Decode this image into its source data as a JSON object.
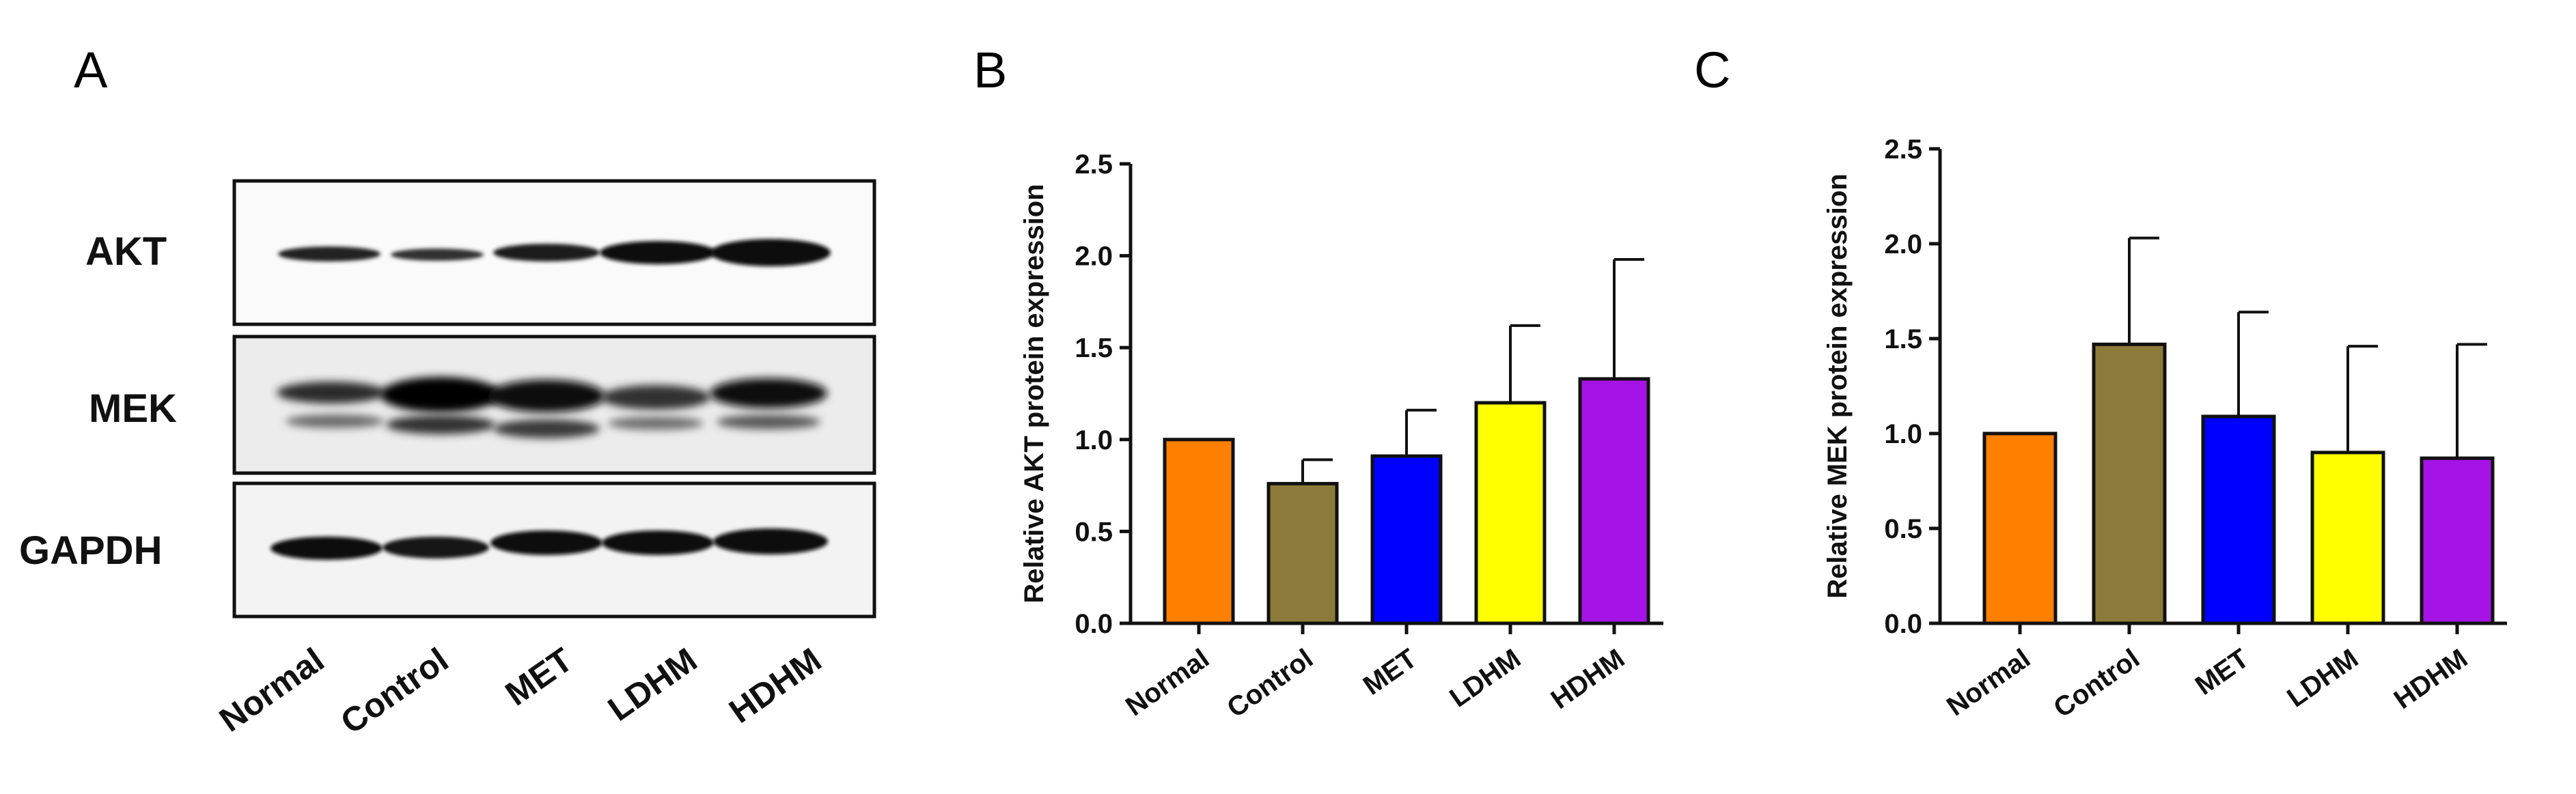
{
  "panel_letters": [
    "A",
    "B",
    "C"
  ],
  "blot": {
    "rows": [
      "AKT",
      "MEK",
      "GAPDH"
    ],
    "lanes": [
      "Normal",
      "Control",
      "MET",
      "LDHM",
      "HDHM"
    ]
  },
  "chart_data": [
    {
      "type": "bar",
      "title": "",
      "xlabel": "",
      "ylabel": "Relative  AKT protein expression",
      "categories": [
        "Normal",
        "Control",
        "MET",
        "LDHM",
        "HDHM"
      ],
      "values": [
        1.0,
        0.76,
        0.91,
        1.2,
        1.33
      ],
      "errors": [
        0,
        0.13,
        0.25,
        0.42,
        0.65
      ],
      "colors": [
        "#FF7F00",
        "#8C7A3A",
        "#0000FF",
        "#FFFF00",
        "#A513E6"
      ],
      "ylim": [
        0,
        2.5
      ],
      "yticks": [
        "0.0",
        "0.5",
        "1.0",
        "1.5",
        "2.0",
        "2.5"
      ]
    },
    {
      "type": "bar",
      "title": "",
      "xlabel": "",
      "ylabel": "Relative  MEK protein expression",
      "categories": [
        "Normal",
        "Control",
        "MET",
        "LDHM",
        "HDHM"
      ],
      "values": [
        1.0,
        1.47,
        1.09,
        0.9,
        0.87
      ],
      "errors": [
        0,
        0.56,
        0.55,
        0.56,
        0.6
      ],
      "colors": [
        "#FF7F00",
        "#8C7A3A",
        "#0000FF",
        "#FFFF00",
        "#A513E6"
      ],
      "ylim": [
        0,
        2.5
      ],
      "yticks": [
        "0.0",
        "0.5",
        "1.0",
        "1.5",
        "2.0",
        "2.5"
      ]
    }
  ]
}
